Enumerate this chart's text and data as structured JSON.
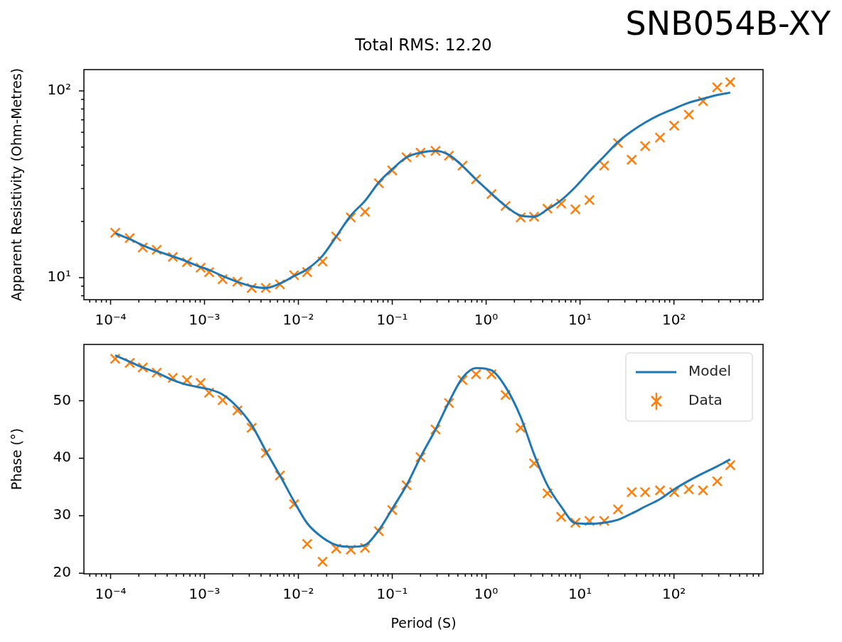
{
  "chart_data": [
    {
      "type": "line",
      "title": "Total RMS: 12.20",
      "annotations": [
        "SNB054B-XY"
      ],
      "ylabel": "Apparent Resistivity (Ohm-Metres)",
      "log": "xy",
      "legend": false,
      "x": [
        0.000112,
        0.00016,
        0.00022,
        0.00031,
        0.00046,
        0.00065,
        0.00091,
        0.00112,
        0.00156,
        0.00224,
        0.00318,
        0.0045,
        0.00637,
        0.009,
        0.0124,
        0.0181,
        0.0253,
        0.0362,
        0.0513,
        0.072,
        0.1,
        0.142,
        0.2,
        0.289,
        0.402,
        0.56,
        0.78,
        1.14,
        1.61,
        2.33,
        3.24,
        4.5,
        6.3,
        8.93,
        12.6,
        18.1,
        25.4,
        35.5,
        49.4,
        71.1,
        100.7,
        144,
        204,
        289,
        398
      ],
      "xlim": [
        5.2e-05,
        890
      ],
      "xticks": [
        {
          "value": 6e-05,
          "label": null
        },
        {
          "value": 7e-05,
          "label": null
        },
        {
          "value": 8e-05,
          "label": null
        },
        {
          "value": 9e-05,
          "label": null
        },
        {
          "value": 0.0001,
          "label": "10⁻⁴"
        },
        {
          "value": 0.0002,
          "label": null
        },
        {
          "value": 0.0003,
          "label": null
        },
        {
          "value": 0.0004,
          "label": null
        },
        {
          "value": 0.0005,
          "label": null
        },
        {
          "value": 0.0006,
          "label": null
        },
        {
          "value": 0.0007,
          "label": null
        },
        {
          "value": 0.0008,
          "label": null
        },
        {
          "value": 0.0009,
          "label": null
        },
        {
          "value": 0.001,
          "label": "10⁻³"
        },
        {
          "value": 0.002,
          "label": null
        },
        {
          "value": 0.003,
          "label": null
        },
        {
          "value": 0.004,
          "label": null
        },
        {
          "value": 0.005,
          "label": null
        },
        {
          "value": 0.006,
          "label": null
        },
        {
          "value": 0.007,
          "label": null
        },
        {
          "value": 0.008,
          "label": null
        },
        {
          "value": 0.009,
          "label": null
        },
        {
          "value": 0.01,
          "label": "10⁻²"
        },
        {
          "value": 0.02,
          "label": null
        },
        {
          "value": 0.03,
          "label": null
        },
        {
          "value": 0.04,
          "label": null
        },
        {
          "value": 0.05,
          "label": null
        },
        {
          "value": 0.06,
          "label": null
        },
        {
          "value": 0.07,
          "label": null
        },
        {
          "value": 0.08,
          "label": null
        },
        {
          "value": 0.09,
          "label": null
        },
        {
          "value": 0.1,
          "label": "10⁻¹"
        },
        {
          "value": 0.2,
          "label": null
        },
        {
          "value": 0.3,
          "label": null
        },
        {
          "value": 0.4,
          "label": null
        },
        {
          "value": 0.5,
          "label": null
        },
        {
          "value": 0.6,
          "label": null
        },
        {
          "value": 0.7,
          "label": null
        },
        {
          "value": 0.8,
          "label": null
        },
        {
          "value": 0.9,
          "label": null
        },
        {
          "value": 1,
          "label": "10⁰"
        },
        {
          "value": 2,
          "label": null
        },
        {
          "value": 3,
          "label": null
        },
        {
          "value": 4,
          "label": null
        },
        {
          "value": 5,
          "label": null
        },
        {
          "value": 6,
          "label": null
        },
        {
          "value": 7,
          "label": null
        },
        {
          "value": 8,
          "label": null
        },
        {
          "value": 9,
          "label": null
        },
        {
          "value": 10,
          "label": "10¹"
        },
        {
          "value": 20,
          "label": null
        },
        {
          "value": 30,
          "label": null
        },
        {
          "value": 40,
          "label": null
        },
        {
          "value": 50,
          "label": null
        },
        {
          "value": 60,
          "label": null
        },
        {
          "value": 70,
          "label": null
        },
        {
          "value": 80,
          "label": null
        },
        {
          "value": 90,
          "label": null
        },
        {
          "value": 100,
          "label": "10²"
        },
        {
          "value": 200,
          "label": null
        },
        {
          "value": 300,
          "label": null
        },
        {
          "value": 400,
          "label": null
        },
        {
          "value": 500,
          "label": null
        },
        {
          "value": 600,
          "label": null
        },
        {
          "value": 700,
          "label": null
        },
        {
          "value": 800,
          "label": null
        }
      ],
      "ylim": [
        7.62,
        130
      ],
      "yticks": [
        {
          "value": 8,
          "label": null
        },
        {
          "value": 9,
          "label": null
        },
        {
          "value": 10,
          "label": "10¹"
        },
        {
          "value": 20,
          "label": null
        },
        {
          "value": 30,
          "label": null
        },
        {
          "value": 40,
          "label": null
        },
        {
          "value": 50,
          "label": null
        },
        {
          "value": 60,
          "label": null
        },
        {
          "value": 70,
          "label": null
        },
        {
          "value": 80,
          "label": null
        },
        {
          "value": 90,
          "label": null
        },
        {
          "value": 100,
          "label": "10²"
        }
      ],
      "series": [
        {
          "color": "#1f77b4",
          "values": [
            17.3,
            16.1,
            14.9,
            13.9,
            13.0,
            12.2,
            11.4,
            11.0,
            10.2,
            9.5,
            9.0,
            8.8,
            9.3,
            10.2,
            11.1,
            13.1,
            16.6,
            21.5,
            25.8,
            32.4,
            38.1,
            44.1,
            46.7,
            47.7,
            45.4,
            39.6,
            33.6,
            28.2,
            24.2,
            21.5,
            21.2,
            23.2,
            26.0,
            30.6,
            37.0,
            44.7,
            53.3,
            60.8,
            67.7,
            74.6,
            80.3,
            86.4,
            90.8,
            95.1,
            97.9
          ]
        },
        {
          "type": "scatter",
          "color": "#ff7f0e",
          "marker": "cross",
          "values": [
            17.4,
            16.3,
            14.5,
            14.1,
            12.9,
            12.1,
            11.3,
            10.7,
            9.8,
            9.5,
            8.8,
            8.8,
            9.2,
            10.3,
            10.7,
            12.2,
            16.6,
            21.0,
            22.5,
            32.0,
            37.5,
            44.1,
            46.7,
            47.7,
            45.0,
            39.8,
            33.6,
            28.0,
            24.2,
            21.0,
            21.2,
            23.4,
            24.9,
            23.2,
            26.0,
            39.8,
            52.5,
            42.8,
            50.6,
            56.2,
            65.1,
            74.6,
            88.1,
            104.4,
            111.4
          ]
        }
      ]
    },
    {
      "type": "line",
      "xlabel": "Period (S)",
      "ylabel": "Phase (°)",
      "log": "x",
      "legend": "top right",
      "x": [
        0.000112,
        0.00016,
        0.00022,
        0.00031,
        0.00046,
        0.00065,
        0.00091,
        0.00112,
        0.00156,
        0.00224,
        0.00318,
        0.0045,
        0.00637,
        0.009,
        0.0124,
        0.0181,
        0.0253,
        0.0362,
        0.0513,
        0.072,
        0.1,
        0.142,
        0.2,
        0.289,
        0.402,
        0.56,
        0.78,
        1.14,
        1.61,
        2.33,
        3.24,
        4.5,
        6.3,
        8.93,
        12.6,
        18.1,
        25.4,
        35.5,
        49.4,
        71.1,
        100.7,
        144,
        204,
        289,
        398
      ],
      "xlim": [
        5.2e-05,
        890
      ],
      "xticks": [
        {
          "value": 6e-05,
          "label": null
        },
        {
          "value": 7e-05,
          "label": null
        },
        {
          "value": 8e-05,
          "label": null
        },
        {
          "value": 9e-05,
          "label": null
        },
        {
          "value": 0.0001,
          "label": "10⁻⁴"
        },
        {
          "value": 0.0002,
          "label": null
        },
        {
          "value": 0.0003,
          "label": null
        },
        {
          "value": 0.0004,
          "label": null
        },
        {
          "value": 0.0005,
          "label": null
        },
        {
          "value": 0.0006,
          "label": null
        },
        {
          "value": 0.0007,
          "label": null
        },
        {
          "value": 0.0008,
          "label": null
        },
        {
          "value": 0.0009,
          "label": null
        },
        {
          "value": 0.001,
          "label": "10⁻³"
        },
        {
          "value": 0.002,
          "label": null
        },
        {
          "value": 0.003,
          "label": null
        },
        {
          "value": 0.004,
          "label": null
        },
        {
          "value": 0.005,
          "label": null
        },
        {
          "value": 0.006,
          "label": null
        },
        {
          "value": 0.007,
          "label": null
        },
        {
          "value": 0.008,
          "label": null
        },
        {
          "value": 0.009,
          "label": null
        },
        {
          "value": 0.01,
          "label": "10⁻²"
        },
        {
          "value": 0.02,
          "label": null
        },
        {
          "value": 0.03,
          "label": null
        },
        {
          "value": 0.04,
          "label": null
        },
        {
          "value": 0.05,
          "label": null
        },
        {
          "value": 0.06,
          "label": null
        },
        {
          "value": 0.07,
          "label": null
        },
        {
          "value": 0.08,
          "label": null
        },
        {
          "value": 0.09,
          "label": null
        },
        {
          "value": 0.1,
          "label": "10⁻¹"
        },
        {
          "value": 0.2,
          "label": null
        },
        {
          "value": 0.3,
          "label": null
        },
        {
          "value": 0.4,
          "label": null
        },
        {
          "value": 0.5,
          "label": null
        },
        {
          "value": 0.6,
          "label": null
        },
        {
          "value": 0.7,
          "label": null
        },
        {
          "value": 0.8,
          "label": null
        },
        {
          "value": 0.9,
          "label": null
        },
        {
          "value": 1,
          "label": "10⁰"
        },
        {
          "value": 2,
          "label": null
        },
        {
          "value": 3,
          "label": null
        },
        {
          "value": 4,
          "label": null
        },
        {
          "value": 5,
          "label": null
        },
        {
          "value": 6,
          "label": null
        },
        {
          "value": 7,
          "label": null
        },
        {
          "value": 8,
          "label": null
        },
        {
          "value": 9,
          "label": null
        },
        {
          "value": 10,
          "label": "10¹"
        },
        {
          "value": 20,
          "label": null
        },
        {
          "value": 30,
          "label": null
        },
        {
          "value": 40,
          "label": null
        },
        {
          "value": 50,
          "label": null
        },
        {
          "value": 60,
          "label": null
        },
        {
          "value": 70,
          "label": null
        },
        {
          "value": 80,
          "label": null
        },
        {
          "value": 90,
          "label": null
        },
        {
          "value": 100,
          "label": "10²"
        },
        {
          "value": 200,
          "label": null
        },
        {
          "value": 300,
          "label": null
        },
        {
          "value": 400,
          "label": null
        },
        {
          "value": 500,
          "label": null
        },
        {
          "value": 600,
          "label": null
        },
        {
          "value": 700,
          "label": null
        },
        {
          "value": 800,
          "label": null
        }
      ],
      "ylim": [
        19.9,
        59.8
      ],
      "yticks": [
        20,
        30,
        40,
        50
      ],
      "series": [
        {
          "name": "Model",
          "color": "#1f77b4",
          "values": [
            57.9,
            56.8,
            55.8,
            54.9,
            53.6,
            52.8,
            52.3,
            52.0,
            51.1,
            48.9,
            45.8,
            41.3,
            37.0,
            32.5,
            28.7,
            26.2,
            24.9,
            24.6,
            24.9,
            27.5,
            31.2,
            35.3,
            40.2,
            45.0,
            49.8,
            54.0,
            55.7,
            55.3,
            52.4,
            47.2,
            40.7,
            35.3,
            31.6,
            28.7,
            28.6,
            28.8,
            29.3,
            30.4,
            31.6,
            32.9,
            34.6,
            36.1,
            37.4,
            38.6,
            39.8
          ]
        },
        {
          "type": "scatter",
          "name": "Data",
          "color": "#ff7f0e",
          "marker": "cross",
          "values": [
            57.3,
            56.6,
            55.8,
            54.9,
            54.0,
            53.6,
            53.1,
            51.4,
            50.1,
            48.3,
            45.3,
            40.9,
            37.0,
            32.0,
            25.1,
            22.0,
            24.3,
            24.1,
            24.4,
            27.3,
            31.0,
            35.3,
            40.2,
            45.0,
            49.6,
            53.6,
            54.6,
            54.6,
            51.0,
            45.3,
            39.1,
            33.9,
            29.8,
            28.8,
            29.1,
            29.1,
            31.1,
            34.1,
            34.1,
            34.4,
            34.1,
            34.6,
            34.4,
            36.0,
            38.8
          ]
        }
      ]
    }
  ]
}
